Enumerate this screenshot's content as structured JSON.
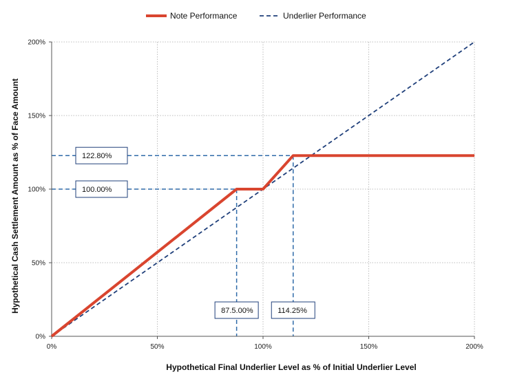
{
  "chart_data": {
    "type": "line",
    "xlabel": "Hypothetical Final Underlier Level as % of Initial Underlier Level",
    "ylabel": "Hypothetical Cash Settlement Amount as % of Face Amount",
    "xlim": [
      0,
      200
    ],
    "ylim": [
      0,
      200
    ],
    "x_ticks": [
      "0%",
      "50%",
      "100%",
      "150%",
      "200%"
    ],
    "y_ticks": [
      "0%",
      "50%",
      "100%",
      "150%",
      "200%"
    ],
    "grid": "dotted",
    "legend_position": "top",
    "series": [
      {
        "name": "Note Performance",
        "style": "solid",
        "color": "#d9452f",
        "x": [
          0,
          87.5,
          100,
          114.25,
          200
        ],
        "y": [
          0,
          100,
          100,
          122.8,
          122.8
        ]
      },
      {
        "name": "Underlier Performance",
        "style": "dashed",
        "color": "#1f3f7a",
        "x": [
          0,
          200
        ],
        "y": [
          0,
          200
        ]
      }
    ],
    "reference_lines": [
      {
        "axis": "y",
        "value": 122.8,
        "color": "#2e6aa8"
      },
      {
        "axis": "y",
        "value": 100,
        "color": "#2e6aa8"
      },
      {
        "axis": "x",
        "value": 87.5,
        "color": "#2e6aa8"
      },
      {
        "axis": "x",
        "value": 114.25,
        "color": "#2e6aa8"
      }
    ],
    "annotations": [
      {
        "text": "122.80%",
        "anchor": "y",
        "value": 122.8
      },
      {
        "text": "100.00%",
        "anchor": "y",
        "value": 100
      },
      {
        "text": "87.5.00%",
        "anchor": "x",
        "value": 87.5
      },
      {
        "text": "114.25%",
        "anchor": "x",
        "value": 114.25
      }
    ]
  }
}
